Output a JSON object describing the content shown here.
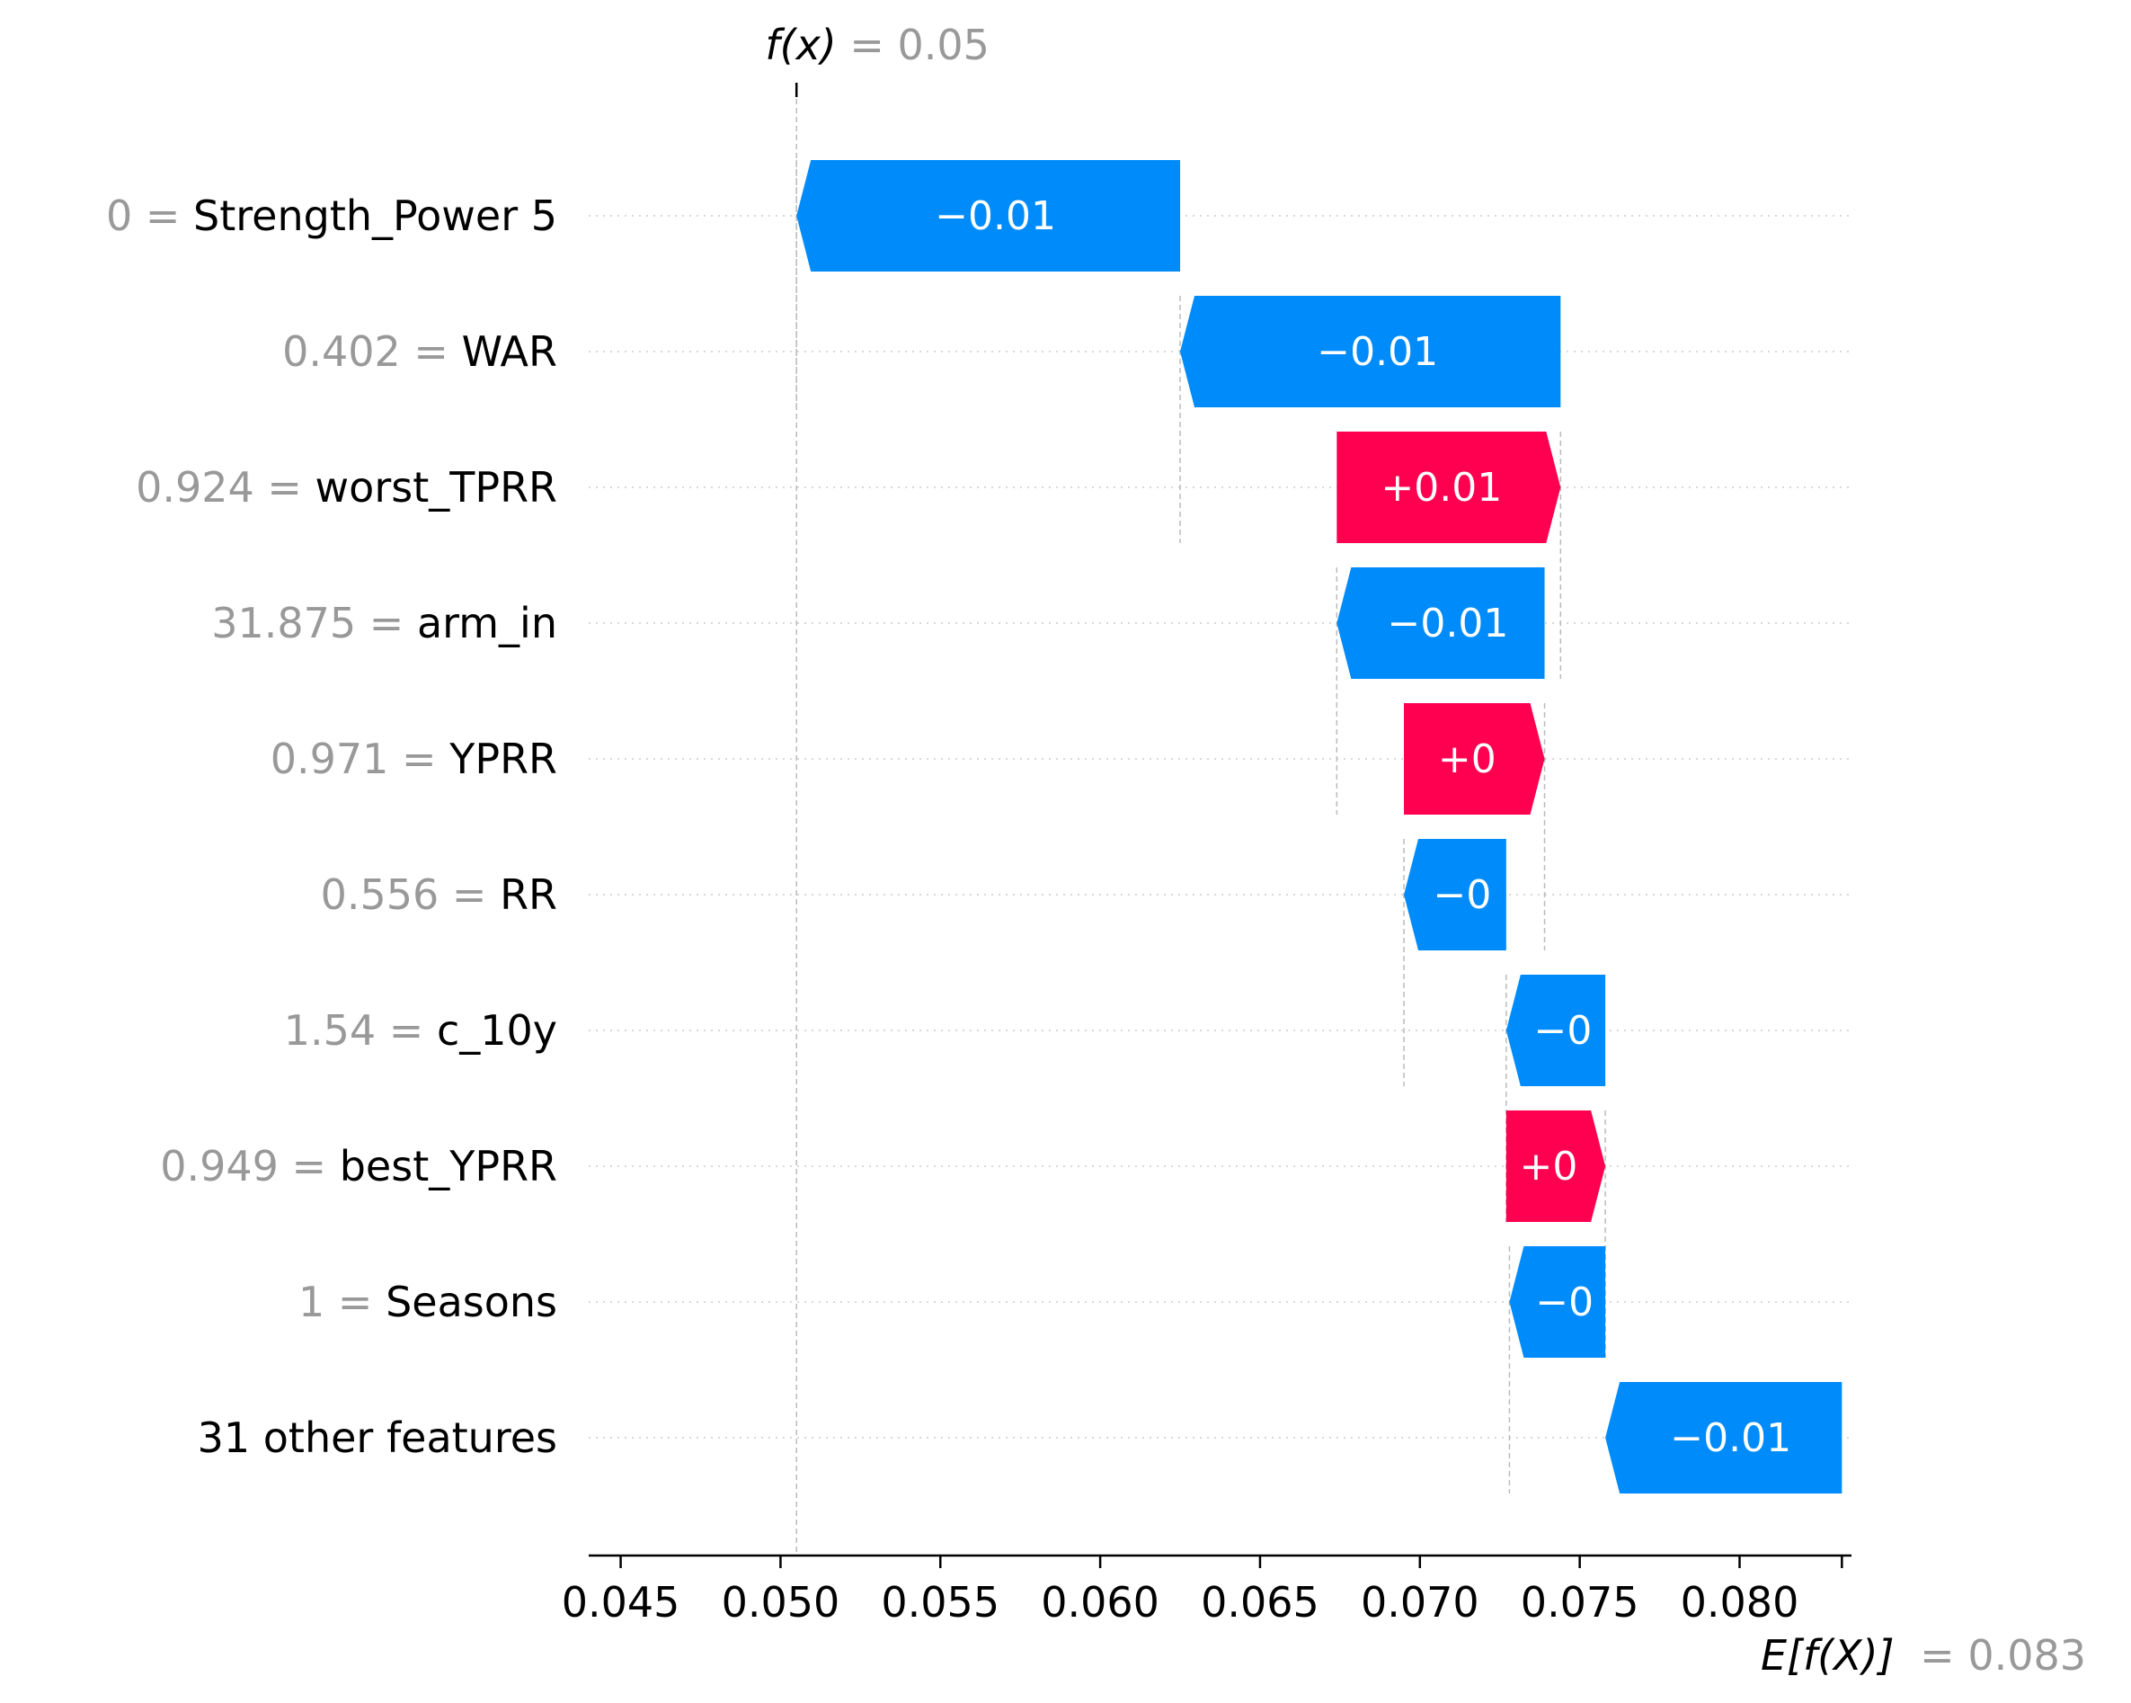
{
  "chart_data": {
    "type": "waterfall",
    "fx_label": "f(x)",
    "fx_value": "= 0.05",
    "efx_label": "E[f(X)]",
    "efx_value": "= 0.083",
    "fx": 0.0505,
    "efx": 0.0832,
    "xlim": [
      0.044,
      0.0835
    ],
    "xticks": [
      0.045,
      0.05,
      0.055,
      0.06,
      0.065,
      0.07,
      0.075,
      0.08
    ],
    "xtick_labels": [
      "0.045",
      "0.050",
      "0.055",
      "0.060",
      "0.065",
      "0.070",
      "0.075",
      "0.080"
    ],
    "colors": {
      "positive": "#ff0051",
      "negative": "#008bfb"
    },
    "features": [
      {
        "value": "0",
        "name": "Strength_Power 5",
        "label": "−0.01",
        "start": 0.0625,
        "end": 0.0505
      },
      {
        "value": "0.402",
        "name": "WAR",
        "label": "−0.01",
        "start": 0.0744,
        "end": 0.0625
      },
      {
        "value": "0.924",
        "name": "worst_TPRR",
        "label": "+0.01",
        "start": 0.0674,
        "end": 0.0744
      },
      {
        "value": "31.875",
        "name": "arm_in",
        "label": "−0.01",
        "start": 0.0739,
        "end": 0.0674
      },
      {
        "value": "0.971",
        "name": "YPRR",
        "label": "+0",
        "start": 0.0695,
        "end": 0.0739
      },
      {
        "value": "0.556",
        "name": "RR",
        "label": "−0",
        "start": 0.0727,
        "end": 0.0695
      },
      {
        "value": "1.54",
        "name": "c_10y",
        "label": "−0",
        "start": 0.0758,
        "end": 0.0727
      },
      {
        "value": "0.949",
        "name": "best_YPRR",
        "label": "+0",
        "start": 0.0727,
        "end": 0.0758
      },
      {
        "value": "1",
        "name": "Seasons",
        "label": "−0",
        "start": 0.0758,
        "end": 0.0728
      },
      {
        "value": "",
        "name": "31 other features",
        "label": "−0.01",
        "start": 0.0832,
        "end": 0.0758
      }
    ]
  }
}
